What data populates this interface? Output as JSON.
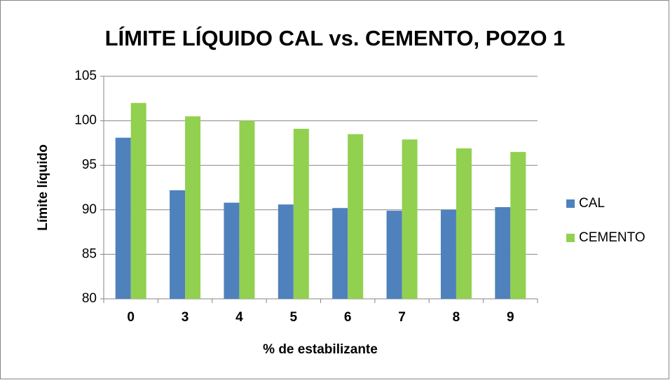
{
  "chart_data": {
    "type": "bar",
    "title": "LÍMITE LÍQUIDO CAL vs. CEMENTO, POZO 1",
    "x_label": "% de estabilizante",
    "y_label": "Límite líquido",
    "categories": [
      "0",
      "3",
      "4",
      "5",
      "6",
      "7",
      "8",
      "9"
    ],
    "series": [
      {
        "name": "CAL",
        "color": "#4f81bd",
        "values": [
          98.1,
          92.2,
          90.8,
          90.6,
          90.2,
          89.9,
          90.0,
          90.3
        ]
      },
      {
        "name": "CEMENTO",
        "color": "#92d050",
        "values": [
          102.0,
          100.5,
          100.0,
          99.1,
          98.5,
          97.9,
          96.9,
          96.5
        ]
      }
    ],
    "ylim": [
      80,
      105
    ],
    "yticks": [
      80,
      85,
      90,
      95,
      100,
      105
    ],
    "grid": true,
    "legend": "right"
  }
}
